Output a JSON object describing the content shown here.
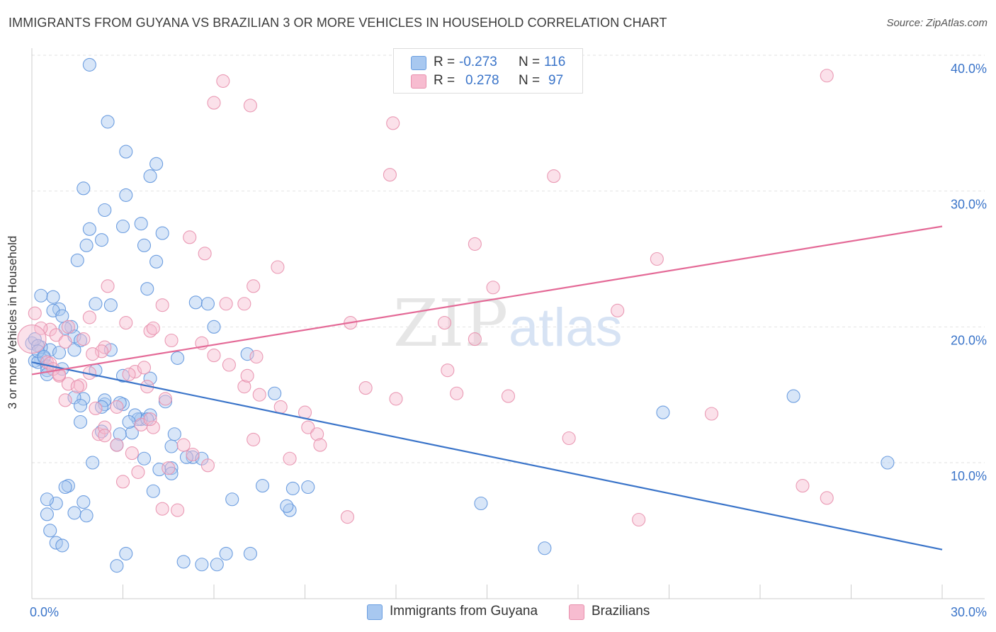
{
  "header": {
    "title": "IMMIGRANTS FROM GUYANA VS BRAZILIAN 3 OR MORE VEHICLES IN HOUSEHOLD CORRELATION CHART",
    "source": "Source: ZipAtlas.com"
  },
  "legend": {
    "rows": [
      {
        "r_label": "R =",
        "r_value": "-0.273",
        "n_label": "N =",
        "n_value": "116",
        "color": "#a8c8f0",
        "stroke": "#6a9ee0"
      },
      {
        "r_label": "R =",
        "r_value": "0.278",
        "n_label": "N =",
        "n_value": "97",
        "color": "#f7bcd0",
        "stroke": "#e890ad"
      }
    ]
  },
  "bottom_legend": {
    "items": [
      {
        "label": "Immigrants from Guyana",
        "color": "#a8c8f0",
        "stroke": "#6a9ee0"
      },
      {
        "label": "Brazilians",
        "color": "#f7bcd0",
        "stroke": "#e890ad"
      }
    ]
  },
  "watermark": {
    "zip": "ZIP",
    "atlas": "atlas"
  },
  "chart_data": {
    "type": "scatter",
    "title": "IMMIGRANTS FROM GUYANA VS BRAZILIAN 3 OR MORE VEHICLES IN HOUSEHOLD CORRELATION CHART",
    "ylabel": "3 or more Vehicles in Household",
    "xlabel": "",
    "xlim": [
      0,
      30
    ],
    "ylim": [
      0,
      40
    ],
    "x_tick_labels": [
      "0.0%",
      "30.0%"
    ],
    "y_tick_labels": [
      "10.0%",
      "20.0%",
      "30.0%",
      "40.0%"
    ],
    "y_ticks": [
      10,
      20,
      30,
      40
    ],
    "grid": true,
    "colors": {
      "blue": "#3a74c9",
      "pink": "#e46a97",
      "axis_text": "#3a74c9"
    },
    "series": [
      {
        "name": "Immigrants from Guyana",
        "fill": "#a8c8f0",
        "stroke": "#5f95dd",
        "trend": {
          "x": [
            0,
            30
          ],
          "y": [
            17.4,
            3.6
          ],
          "color": "#3a74c9"
        },
        "x": [
          1.9,
          2.5,
          3.1,
          3.1,
          4.1,
          3.9,
          3.6,
          1.7,
          2.4,
          1.9,
          1.8,
          1.5,
          2.3,
          3.0,
          4.3,
          4.1,
          3.7,
          3.8,
          2.6,
          2.1,
          0.9,
          0.7,
          0.7,
          0.3,
          1.0,
          1.3,
          1.4,
          1.6,
          1.1,
          2.6,
          1.4,
          0.6,
          0.9,
          0.3,
          0.4,
          0.1,
          0.2,
          0.3,
          0.0,
          0.1,
          0.2,
          0.2,
          0.4,
          0.5,
          1.0,
          0.5,
          0.5,
          2.1,
          3.0,
          3.9,
          4.8,
          5.4,
          5.8,
          6.0,
          7.1,
          8.0,
          4.4,
          3.9,
          3.6,
          3.5,
          3.0,
          2.9,
          2.4,
          2.4,
          1.7,
          1.4,
          1.6,
          2.3,
          3.3,
          4.6,
          5.3,
          4.2,
          4.6,
          1.2,
          1.1,
          0.8,
          0.5,
          0.5,
          0.6,
          0.8,
          1.0,
          1.4,
          1.7,
          1.8,
          2.8,
          3.1,
          5.0,
          5.6,
          6.1,
          6.4,
          7.2,
          8.5,
          8.4,
          8.6,
          5.1,
          5.6,
          3.7,
          4.6,
          4.7,
          3.8,
          3.4,
          3.2,
          2.9,
          2.0,
          1.6,
          2.3,
          2.8,
          4.0,
          6.6,
          7.6,
          9.1,
          14.8,
          16.9,
          20.8,
          25.1,
          28.2
        ],
        "y": [
          39.3,
          35.1,
          32.9,
          29.7,
          32.0,
          31.1,
          27.6,
          30.2,
          28.6,
          27.2,
          26.0,
          24.9,
          26.4,
          27.4,
          26.9,
          24.8,
          26.0,
          22.8,
          21.6,
          21.7,
          21.3,
          21.2,
          22.2,
          22.3,
          20.8,
          20.0,
          19.3,
          19.0,
          19.9,
          18.3,
          18.3,
          18.3,
          18.1,
          17.6,
          17.7,
          17.5,
          17.4,
          18.5,
          18.8,
          19.1,
          18.6,
          18.2,
          17.8,
          17.1,
          16.9,
          16.8,
          16.5,
          16.8,
          16.4,
          16.2,
          17.7,
          21.8,
          21.7,
          20.0,
          18.0,
          15.1,
          14.5,
          13.5,
          13.2,
          13.2,
          14.3,
          14.4,
          14.3,
          14.6,
          14.7,
          14.8,
          13.0,
          12.3,
          12.2,
          11.2,
          10.4,
          9.5,
          9.6,
          8.3,
          8.2,
          7.0,
          7.3,
          6.2,
          5.0,
          4.1,
          3.9,
          6.3,
          7.1,
          6.1,
          2.4,
          3.3,
          2.7,
          2.5,
          2.5,
          3.3,
          3.3,
          6.5,
          6.8,
          8.1,
          10.4,
          10.3,
          10.3,
          9.2,
          12.1,
          13.2,
          13.5,
          13.0,
          12.1,
          10.0,
          14.2,
          14.1,
          11.3,
          7.9,
          7.3,
          8.3,
          8.2,
          7.0,
          3.7,
          13.7,
          14.9,
          10.0
        ],
        "sizes": [
          9,
          9,
          9,
          9,
          9,
          9,
          9,
          9,
          9,
          9,
          9,
          9,
          9,
          9,
          9,
          9,
          9,
          9,
          9,
          9,
          9,
          9,
          9,
          9,
          9,
          9,
          9,
          9,
          9,
          9,
          9,
          9,
          9,
          9,
          9,
          9,
          9,
          9,
          9,
          9,
          9,
          9,
          9,
          9,
          9,
          9,
          9,
          9,
          9,
          9,
          9,
          9,
          9,
          9,
          9,
          9,
          9,
          9,
          9,
          9,
          9,
          9,
          9,
          9,
          9,
          9,
          9,
          9,
          9,
          9,
          9,
          9,
          9,
          9,
          9,
          9,
          9,
          9,
          9,
          9,
          9,
          9,
          9,
          9,
          9,
          9,
          9,
          9,
          9,
          9,
          9,
          9,
          9,
          9,
          9,
          9,
          9,
          9,
          9,
          9,
          9,
          9,
          9,
          9,
          9,
          9,
          9,
          9,
          9,
          9,
          9,
          9,
          9,
          9,
          9,
          9
        ]
      },
      {
        "name": "Brazilians",
        "fill": "#f7bcd0",
        "stroke": "#e890ad",
        "trend": {
          "x": [
            0,
            30
          ],
          "y": [
            16.5,
            27.4
          ],
          "color": "#e46a97"
        },
        "x": [
          6.3,
          6.0,
          7.2,
          17.8,
          26.2,
          11.9,
          11.8,
          17.2,
          15.2,
          19.3,
          20.6,
          14.6,
          13.6,
          8.1,
          7.3,
          5.2,
          5.7,
          4.3,
          6.4,
          7.0,
          2.5,
          3.1,
          1.9,
          1.7,
          1.2,
          0.6,
          0.8,
          1.1,
          2.4,
          2.3,
          2.0,
          1.9,
          0.9,
          0.5,
          0.6,
          0.7,
          0.9,
          1.2,
          1.6,
          1.5,
          1.1,
          2.1,
          2.8,
          3.4,
          3.7,
          3.2,
          3.8,
          4.4,
          4.0,
          3.6,
          5.0,
          5.3,
          5.8,
          4.5,
          4.8,
          4.3,
          3.9,
          3.5,
          3.0,
          3.3,
          2.2,
          2.8,
          2.4,
          2.4,
          3.9,
          4.0,
          4.6,
          6.0,
          5.6,
          6.5,
          7.0,
          7.1,
          7.4,
          7.5,
          7.3,
          8.2,
          9.0,
          9.1,
          9.4,
          9.5,
          8.5,
          10.4,
          10.5,
          11.0,
          12.0,
          13.7,
          14.0,
          14.6,
          15.7,
          17.7,
          20.0,
          22.4,
          25.4,
          26.2,
          0.1,
          0.3,
          0.0
        ],
        "y": [
          38.1,
          36.5,
          36.3,
          38.6,
          38.5,
          35.0,
          31.2,
          31.1,
          22.9,
          21.2,
          25.0,
          26.1,
          20.3,
          24.4,
          23.0,
          26.6,
          25.4,
          21.6,
          21.7,
          21.7,
          23.0,
          20.3,
          20.7,
          19.1,
          20.0,
          19.8,
          19.4,
          18.9,
          18.5,
          18.2,
          18.0,
          16.6,
          16.4,
          17.4,
          17.3,
          16.9,
          16.5,
          15.8,
          15.7,
          15.6,
          14.6,
          14.0,
          14.1,
          16.7,
          17.0,
          16.5,
          15.6,
          14.7,
          12.6,
          12.8,
          11.3,
          10.6,
          9.8,
          9.6,
          6.5,
          6.6,
          13.2,
          9.3,
          8.6,
          10.7,
          12.1,
          11.3,
          12.6,
          12.0,
          19.7,
          19.9,
          19.0,
          17.9,
          18.8,
          17.2,
          15.6,
          16.4,
          17.8,
          15.0,
          11.7,
          14.1,
          13.7,
          12.6,
          12.1,
          11.3,
          10.3,
          6.0,
          20.3,
          15.5,
          14.7,
          16.8,
          15.1,
          19.1,
          14.9,
          11.8,
          5.8,
          13.6,
          8.3,
          7.4,
          21.0,
          19.9,
          19.1
        ],
        "sizes": [
          9,
          9,
          9,
          9,
          9,
          9,
          9,
          9,
          9,
          9,
          9,
          9,
          9,
          9,
          9,
          9,
          9,
          9,
          9,
          9,
          9,
          9,
          9,
          9,
          9,
          9,
          9,
          9,
          9,
          9,
          9,
          9,
          9,
          9,
          9,
          9,
          9,
          9,
          9,
          9,
          9,
          9,
          9,
          9,
          9,
          9,
          9,
          9,
          9,
          9,
          9,
          9,
          9,
          9,
          9,
          9,
          9,
          9,
          9,
          9,
          9,
          9,
          9,
          9,
          9,
          9,
          9,
          9,
          9,
          9,
          9,
          9,
          9,
          9,
          9,
          9,
          9,
          9,
          9,
          9,
          9,
          9,
          9,
          9,
          9,
          9,
          9,
          9,
          9,
          9,
          9,
          9,
          9,
          9,
          9,
          9,
          20
        ]
      }
    ]
  }
}
